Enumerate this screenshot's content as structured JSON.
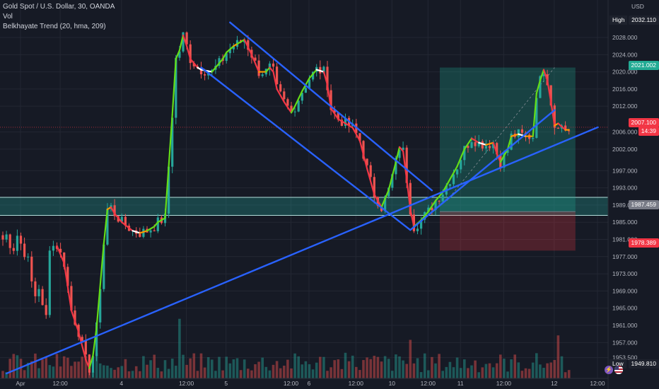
{
  "header": {
    "symbol": "Gold Spot / U.S. Dollar, 30, OANDA",
    "vol": "Vol",
    "indicator": "Belkhayate Trend (20, hma, 209)"
  },
  "axis": {
    "currency": "USD",
    "y_ticks": [
      "2028.000",
      "2024.000",
      "2020.000",
      "2016.000",
      "2012.000",
      "2006.000",
      "2002.000",
      "1997.000",
      "1993.000",
      "1989.000",
      "1985.000",
      "1981.000",
      "1977.000",
      "1973.000",
      "1969.000",
      "1965.000",
      "1961.000",
      "1957.000",
      "1953.500"
    ],
    "x_ticks": [
      "Apr",
      "12:00",
      "4",
      "12:00",
      "5",
      "12:00",
      "6",
      "12:00",
      "10",
      "12:00",
      "11",
      "12:00",
      "12",
      "12:00"
    ]
  },
  "tags": {
    "high_label": "High",
    "high_value": "2032.110",
    "target": "2021.002",
    "current_price": "2007.100",
    "countdown": "14:39",
    "entry": "1987.459",
    "stop": "1978.389",
    "low_label": "Low",
    "low_value": "1949.810"
  },
  "colors": {
    "background": "#161a25",
    "trendline": "#2962ff",
    "zone": "#26a69a",
    "profit": "#22ab94",
    "loss": "#f23645",
    "green_line": "#64dd17",
    "red_line": "#f23645",
    "orange_line": "#ff9800",
    "white_line": "#ffffff"
  },
  "icons": [
    "lightning-icon",
    "us-flag-icon"
  ],
  "chart_data": {
    "type": "candlestick",
    "title": "Gold Spot / U.S. Dollar, 30, OANDA",
    "ylabel": "USD",
    "ylim": [
      1949.8,
      2032.1
    ],
    "support_zone": [
      1986.6,
      1990.8
    ],
    "long_position": {
      "entry": 1987.459,
      "target": 2021.002,
      "stop": 1978.389
    },
    "trendlines": [
      {
        "name": "rising-support",
        "points": [
          [
            1,
            1949.8
          ],
          [
            165,
            2007.1
          ]
        ]
      },
      {
        "name": "channel-top",
        "points": [
          [
            63,
            2031.5
          ],
          [
            119,
            1992.4
          ]
        ]
      },
      {
        "name": "channel-bottom",
        "points": [
          [
            55,
            2021.0
          ],
          [
            113,
            1983.2
          ]
        ]
      },
      {
        "name": "breakout-support",
        "points": [
          [
            113,
            1983.2
          ],
          [
            153,
            2011.1
          ]
        ]
      }
    ],
    "hull_trend": [
      [
        15,
        1979.5
      ],
      [
        17,
        1975.5
      ],
      [
        19,
        1964.5
      ],
      [
        21,
        1959.5
      ],
      [
        23,
        1953.0
      ],
      [
        24,
        1951.0
      ],
      [
        25,
        1954.0
      ],
      [
        26,
        1960.5
      ],
      [
        28,
        1980.0
      ],
      [
        29,
        1988.0
      ],
      [
        30,
        1988.5
      ],
      [
        31,
        1987.0
      ],
      [
        33,
        1985.0
      ],
      [
        36,
        1983.0
      ],
      [
        38,
        1982.5
      ],
      [
        40,
        1983.0
      ],
      [
        42,
        1984.0
      ],
      [
        43,
        1985.0
      ],
      [
        45,
        1986.0
      ],
      [
        47,
        2010.0
      ],
      [
        48,
        2023.0
      ],
      [
        49,
        2025.0
      ],
      [
        50,
        2028.5
      ],
      [
        51,
        2026.0
      ],
      [
        52,
        2023.0
      ],
      [
        54,
        2021.0
      ],
      [
        55,
        2020.5
      ],
      [
        58,
        2020.0
      ],
      [
        59,
        2021.0
      ],
      [
        61,
        2023.0
      ],
      [
        62,
        2024.5
      ],
      [
        64,
        2026.0
      ],
      [
        65,
        2026.5
      ],
      [
        67,
        2027.5
      ],
      [
        69,
        2024.0
      ],
      [
        71,
        2020.0
      ],
      [
        73,
        2020.0
      ],
      [
        74,
        2021.0
      ],
      [
        75,
        2020.0
      ],
      [
        76,
        2016.0
      ],
      [
        78,
        2013.0
      ],
      [
        80,
        2010.5
      ],
      [
        81,
        2012.0
      ],
      [
        83,
        2015.5
      ],
      [
        85,
        2018.5
      ],
      [
        87,
        2020.5
      ],
      [
        89,
        2020.0
      ],
      [
        90,
        2017.0
      ],
      [
        91,
        2011.5
      ],
      [
        93,
        2009.0
      ],
      [
        95,
        2008.0
      ],
      [
        97,
        2007.0
      ],
      [
        99,
        2004.0
      ],
      [
        101,
        1997.5
      ],
      [
        103,
        1991.5
      ],
      [
        105,
        1988.5
      ],
      [
        107,
        1992.5
      ],
      [
        109,
        1999.0
      ],
      [
        110,
        2002.5
      ],
      [
        111,
        2001.5
      ],
      [
        112,
        1995.0
      ],
      [
        113,
        1988.0
      ],
      [
        114,
        1984.0
      ],
      [
        116,
        1985.5
      ],
      [
        118,
        1987.5
      ],
      [
        120,
        1990.0
      ],
      [
        122,
        1992.0
      ],
      [
        124,
        1995.0
      ],
      [
        126,
        1998.0
      ],
      [
        128,
        2002.0
      ],
      [
        130,
        2004.5
      ],
      [
        132,
        2003.5
      ],
      [
        134,
        2003.0
      ],
      [
        136,
        2003.5
      ],
      [
        137,
        2001.0
      ],
      [
        138,
        1999.0
      ],
      [
        140,
        2002.0
      ],
      [
        141,
        2005.0
      ],
      [
        143,
        2005.5
      ],
      [
        145,
        2005.0
      ],
      [
        147,
        2005.0
      ],
      [
        148,
        2015.0
      ],
      [
        149,
        2018.0
      ],
      [
        150,
        2020.5
      ],
      [
        151,
        2018.0
      ],
      [
        152,
        2013.0
      ],
      [
        153,
        2007.5
      ],
      [
        154,
        2008.0
      ],
      [
        156,
        2006.5
      ],
      [
        157,
        2006.5
      ]
    ]
  }
}
